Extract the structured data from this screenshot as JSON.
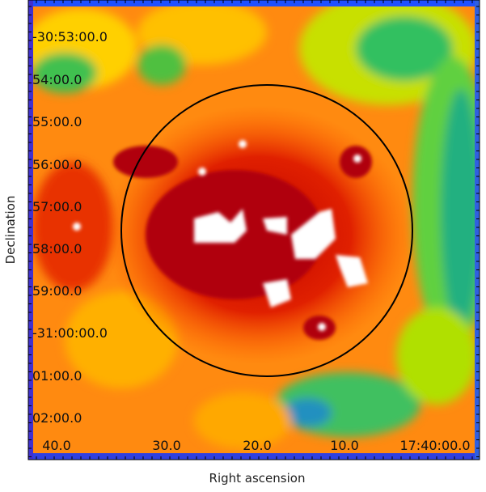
{
  "axes": {
    "x_label": "Right ascension",
    "y_label": "Declination",
    "x_ticks": [
      "40.0",
      "30.0",
      "20.0",
      "10.0",
      "17:40:00.0"
    ],
    "y_ticks": [
      "-30:53:00.0",
      "54:00.0",
      "55:00.0",
      "56:00.0",
      "57:00.0",
      "58:00.0",
      "59:00.0",
      "-31:00:00.0",
      "01:00.0",
      "02:00.0"
    ]
  }
}
